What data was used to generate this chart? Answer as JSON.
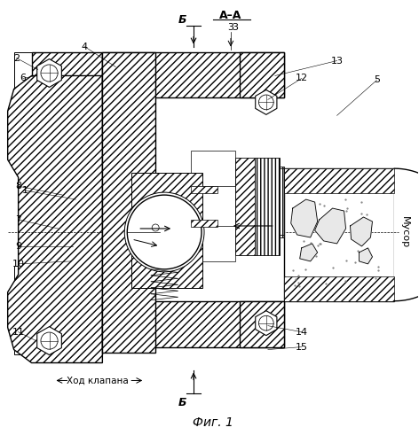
{
  "bg_color": "#ffffff",
  "lc": "#000000",
  "title": "Фиг. 1",
  "musor": "Мусор",
  "hod": "Ход клапана",
  "aa_label": "А–А",
  "b_label": "Б",
  "figsize": [
    4.72,
    5.0
  ],
  "dpi": 100
}
